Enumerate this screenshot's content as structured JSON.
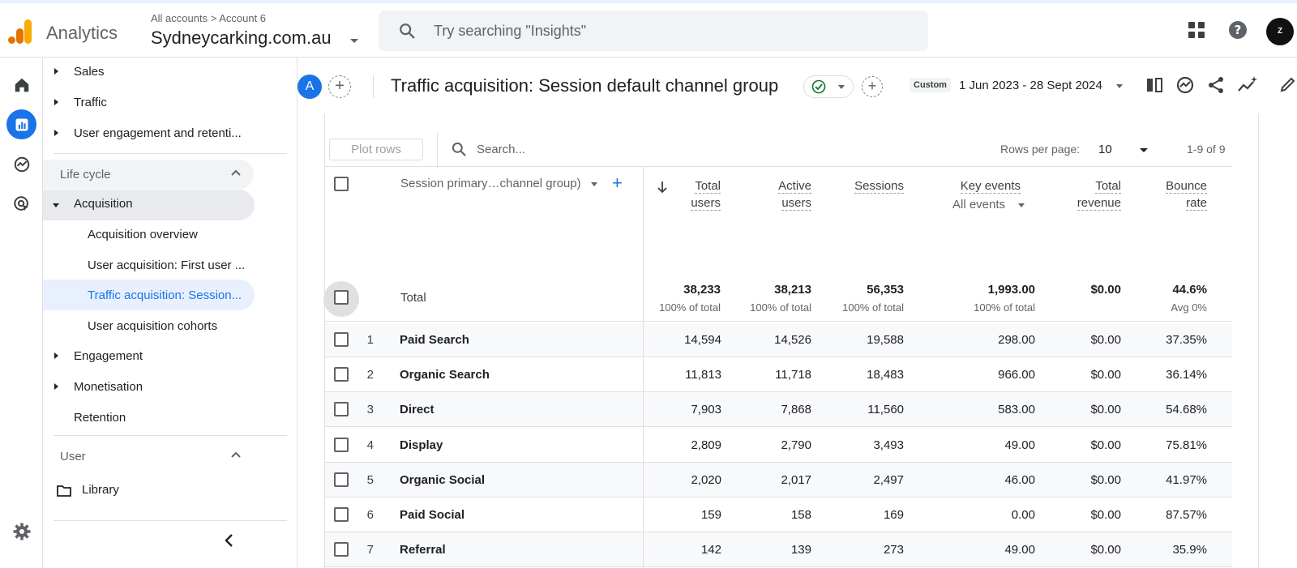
{
  "header": {
    "app_name": "Analytics",
    "breadcrumb_all": "All accounts",
    "breadcrumb_sep": ">",
    "breadcrumb_account": "Account 6",
    "property": "Sydneycarking.com.au",
    "search_placeholder": "Try searching \"Insights\"",
    "avatar_text": "Z"
  },
  "nav": {
    "items_top": [
      "Sales",
      "Traffic",
      "User engagement and retenti..."
    ],
    "section_lifecycle": "Life cycle",
    "acquisition": "Acquisition",
    "acquisition_children": [
      "Acquisition overview",
      "User acquisition: First user ...",
      "Traffic acquisition: Session...",
      "User acquisition cohorts"
    ],
    "engagement": "Engagement",
    "monetisation": "Monetisation",
    "retention": "Retention",
    "section_user": "User",
    "library": "Library"
  },
  "titlebar": {
    "comparison_avatar": "A",
    "title": "Traffic acquisition: Session default channel group",
    "date_tag": "Custom",
    "date_range": "1 Jun 2023 - 28 Sept 2024"
  },
  "table": {
    "plot_rows": "Plot rows",
    "search_placeholder": "Search...",
    "rows_per_page_label": "Rows per page:",
    "rows_per_page": "10",
    "pager": "1-9 of 9",
    "dimension_header": "Session primary…channel group)",
    "col_headers": {
      "total_users_1": "Total",
      "total_users_2": "users",
      "active_users_1": "Active",
      "active_users_2": "users",
      "sessions": "Sessions",
      "key_events": "Key events",
      "key_events_sub": "All events",
      "total_revenue_1": "Total",
      "total_revenue_2": "revenue",
      "bounce_rate_1": "Bounce",
      "bounce_rate_2": "rate"
    },
    "total": {
      "label": "Total",
      "total_users": "38,233",
      "total_users_sub": "100% of total",
      "active_users": "38,213",
      "active_users_sub": "100% of total",
      "sessions": "56,353",
      "sessions_sub": "100% of total",
      "key_events": "1,993.00",
      "key_events_sub": "100% of total",
      "total_revenue": "$0.00",
      "bounce_rate": "44.6%",
      "bounce_rate_sub": "Avg 0%"
    },
    "rows": [
      {
        "idx": "1",
        "name": "Paid Search",
        "total_users": "14,594",
        "active_users": "14,526",
        "sessions": "19,588",
        "key_events": "298.00",
        "total_revenue": "$0.00",
        "bounce_rate": "37.35%"
      },
      {
        "idx": "2",
        "name": "Organic Search",
        "total_users": "11,813",
        "active_users": "11,718",
        "sessions": "18,483",
        "key_events": "966.00",
        "total_revenue": "$0.00",
        "bounce_rate": "36.14%"
      },
      {
        "idx": "3",
        "name": "Direct",
        "total_users": "7,903",
        "active_users": "7,868",
        "sessions": "11,560",
        "key_events": "583.00",
        "total_revenue": "$0.00",
        "bounce_rate": "54.68%"
      },
      {
        "idx": "4",
        "name": "Display",
        "total_users": "2,809",
        "active_users": "2,790",
        "sessions": "3,493",
        "key_events": "49.00",
        "total_revenue": "$0.00",
        "bounce_rate": "75.81%"
      },
      {
        "idx": "5",
        "name": "Organic Social",
        "total_users": "2,020",
        "active_users": "2,017",
        "sessions": "2,497",
        "key_events": "46.00",
        "total_revenue": "$0.00",
        "bounce_rate": "41.97%"
      },
      {
        "idx": "6",
        "name": "Paid Social",
        "total_users": "159",
        "active_users": "158",
        "sessions": "169",
        "key_events": "0.00",
        "total_revenue": "$0.00",
        "bounce_rate": "87.57%"
      },
      {
        "idx": "7",
        "name": "Referral",
        "total_users": "142",
        "active_users": "139",
        "sessions": "273",
        "key_events": "49.00",
        "total_revenue": "$0.00",
        "bounce_rate": "35.9%"
      }
    ]
  },
  "colors": {
    "accent": "#1a73e8",
    "logo_orange": "#f9ab00",
    "logo_dark": "#e37400"
  }
}
